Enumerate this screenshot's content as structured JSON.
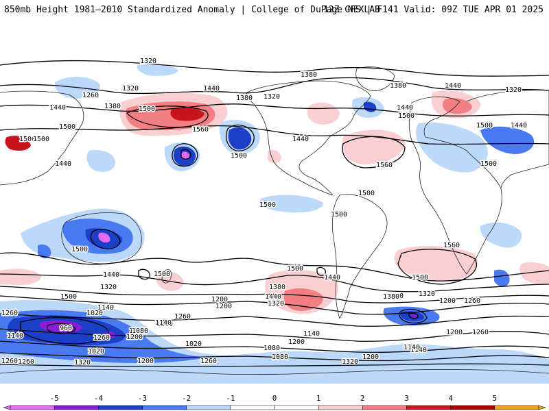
{
  "header": {
    "title_left": "850mb Height 1981–2010 Standardized Anomaly | College of DuPage NEXLAB",
    "title_right": "12Z GFS | F141 Valid: 09Z TUE APR 01 2025"
  },
  "colors": {
    "neg5": "#e36cf0",
    "neg4": "#8a1bd6",
    "neg3": "#1b3fc7",
    "neg2": "#4a7af0",
    "neg1": "#bcd8fb",
    "pos1": "#f9cfd2",
    "pos2": "#f37f82",
    "pos3": "#c8141d",
    "pos4": "#b00000",
    "pos5": "#f4a21c"
  },
  "colorbar": {
    "ticks": [
      "-5",
      "-4",
      "-3",
      "-2",
      "-1",
      "0",
      "1",
      "2",
      "3",
      "4",
      "5"
    ]
  },
  "contour_labels": [
    "1320",
    "1320",
    "1260",
    "1440",
    "1380",
    "1500",
    "1440",
    "1380",
    "1320",
    "1380",
    "1380",
    "1440",
    "1320",
    "1500",
    "1560",
    "1500",
    "1500",
    "1500",
    "1440",
    "1440",
    "1500",
    "1500",
    "1440",
    "1440",
    "1560",
    "1500",
    "1500",
    "1500",
    "1500",
    "1500",
    "1500",
    "1500",
    "1560",
    "1500",
    "1440",
    "1320",
    "1500",
    "1380",
    "1440",
    "1320",
    "1440",
    "1380",
    "1320",
    "1200",
    "1260",
    "1260",
    "1200",
    "1380",
    "1200",
    "1260",
    "1140",
    "1200",
    "1020",
    "960",
    "1140",
    "1260",
    "1200",
    "1080",
    "1020",
    "1080",
    "1140",
    "1140",
    "1200",
    "1260",
    "1140",
    "1080",
    "1200",
    "1320",
    "1260",
    "1200",
    "1080",
    "1260",
    "1140",
    "1020",
    "1260",
    "1200",
    "1320"
  ]
}
